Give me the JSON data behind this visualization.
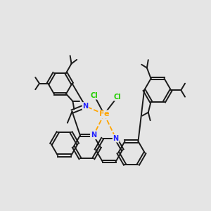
{
  "bg": "#e5e5e5",
  "fe_color": "#FFA500",
  "n_color": "#2222FF",
  "cl_color": "#22CC00",
  "bond_color": "#1a1a1a",
  "bond_width": 1.4,
  "dbo": 0.018,
  "xlim": [
    -1.55,
    1.55
  ],
  "ylim": [
    -1.45,
    1.35
  ]
}
